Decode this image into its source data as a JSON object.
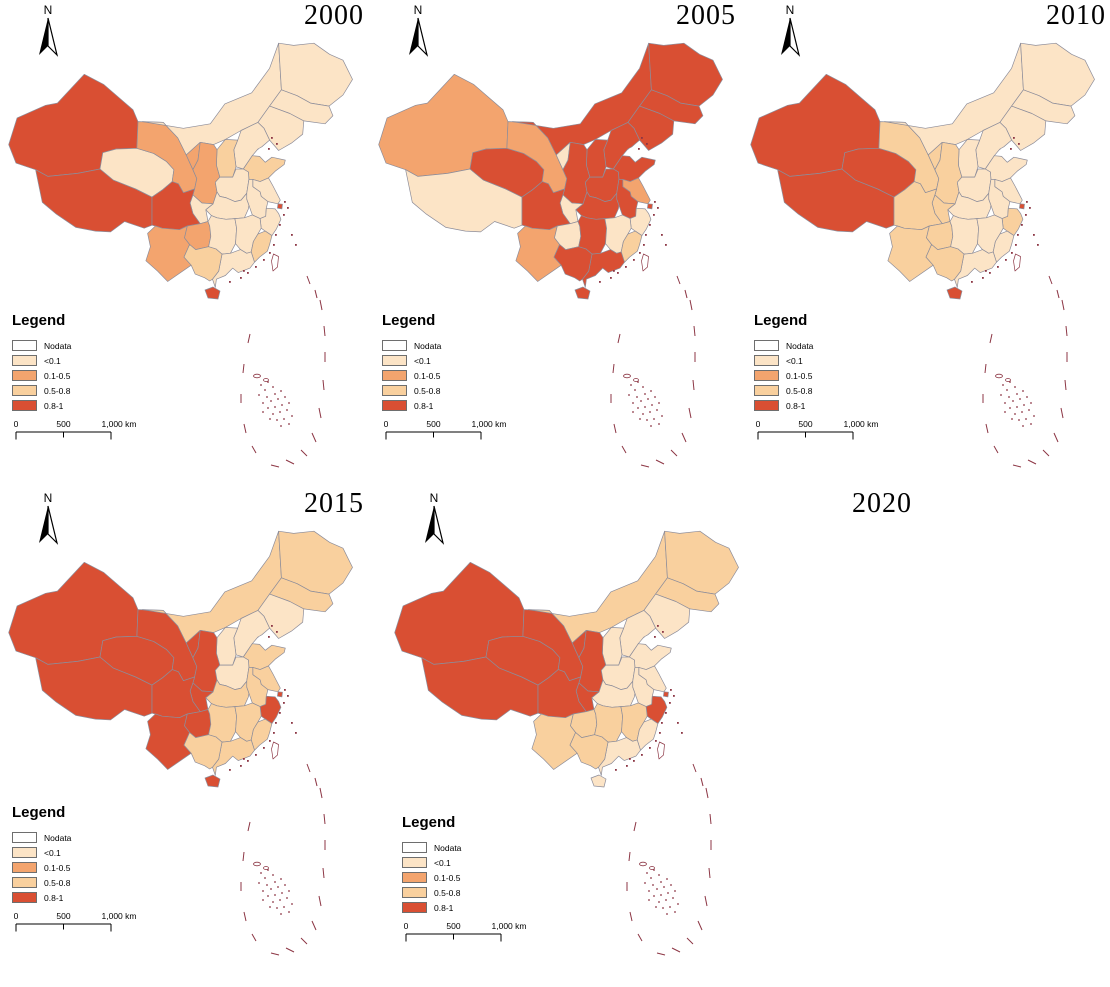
{
  "figure": {
    "description": "Five choropleth maps of China by province for years 2000, 2005, 2010, 2015, 2020",
    "north_label": "N"
  },
  "palette": {
    "nodata": "#ffffff",
    "lt01": "#fce4c6",
    "mid": "#f3a46e",
    "sandy": "#f9d09e",
    "high": "#d94f33",
    "border": "#8d8d9a",
    "island_outline": "#8c3644",
    "text": "#000000"
  },
  "legend": {
    "title": "Legend",
    "items": [
      {
        "key": "nodata",
        "label": "Nodata"
      },
      {
        "key": "lt01",
        "label": "<0.1"
      },
      {
        "key": "mid",
        "label": "0.1-0.5"
      },
      {
        "key": "sandy",
        "label": "0.5-0.8"
      },
      {
        "key": "high",
        "label": "0.8-1"
      }
    ]
  },
  "scalebar": {
    "start": "0",
    "mid": "500",
    "end": "1,000 km"
  },
  "chart_data": {
    "type": "heatmap",
    "title": "China provincial choropleth series",
    "classes": [
      "Nodata",
      "<0.1",
      "0.1-0.5",
      "0.5-0.8",
      "0.8-1"
    ],
    "years": [
      "2000",
      "2005",
      "2010",
      "2015",
      "2020"
    ],
    "categories": [
      "xinjiang",
      "tibet",
      "qinghai",
      "gansu",
      "ningxia",
      "inner_mongolia",
      "heilongjiang",
      "jilin",
      "liaoning",
      "beijing",
      "tianjin",
      "hebei",
      "shanxi",
      "shaanxi",
      "shandong",
      "henan",
      "jiangsu",
      "anhui",
      "shanghai",
      "zhejiang",
      "hubei",
      "chongqing",
      "sichuan",
      "yunnan",
      "guizhou",
      "hunan",
      "jiangxi",
      "fujian",
      "guangdong",
      "guangxi",
      "hainan",
      "taiwan"
    ],
    "series": [
      {
        "name": "2000",
        "values": [
          "0.8-1",
          "0.8-1",
          "<0.1",
          "0.1-0.5",
          "0.1-0.5",
          "<0.1",
          "<0.1",
          "<0.1",
          "<0.1",
          "0.8-1",
          "<0.1",
          "<0.1",
          "0.5-0.8",
          "0.1-0.5",
          "0.5-0.8",
          "<0.1",
          "<0.1",
          "<0.1",
          "0.8-1",
          "<0.1",
          "<0.1",
          "<0.1",
          "0.8-1",
          "0.1-0.5",
          "0.1-0.5",
          "<0.1",
          "<0.1",
          "0.5-0.8",
          "<0.1",
          "0.5-0.8",
          "0.8-1",
          "Nodata"
        ]
      },
      {
        "name": "2005",
        "values": [
          "0.1-0.5",
          "<0.1",
          "0.8-1",
          "0.1-0.5",
          "<0.1",
          "0.8-1",
          "0.8-1",
          "0.8-1",
          "0.8-1",
          "0.8-1",
          "0.8-1",
          "0.8-1",
          "0.8-1",
          "0.8-1",
          "0.8-1",
          "0.8-1",
          "0.1-0.5",
          "0.8-1",
          "0.8-1",
          "<0.1",
          "0.8-1",
          "<0.1",
          "0.8-1",
          "0.1-0.5",
          "<0.1",
          "0.8-1",
          "<0.1",
          "0.5-0.8",
          "0.8-1",
          "0.8-1",
          "0.8-1",
          "Nodata"
        ]
      },
      {
        "name": "2010",
        "values": [
          "0.8-1",
          "0.8-1",
          "0.8-1",
          "0.5-0.8",
          "0.5-0.8",
          "<0.1",
          "<0.1",
          "<0.1",
          "<0.1",
          "0.8-1",
          "<0.1",
          "<0.1",
          "<0.1",
          "0.5-0.8",
          "<0.1",
          "<0.1",
          "<0.1",
          "<0.1",
          "0.8-1",
          "0.5-0.8",
          "<0.1",
          "0.5-0.8",
          "0.5-0.8",
          "0.5-0.8",
          "0.5-0.8",
          "<0.1",
          "<0.1",
          "<0.1",
          "<0.1",
          "0.5-0.8",
          "0.8-1",
          "Nodata"
        ]
      },
      {
        "name": "2015",
        "values": [
          "0.8-1",
          "0.8-1",
          "0.8-1",
          "0.8-1",
          "0.8-1",
          "0.5-0.8",
          "0.5-0.8",
          "0.5-0.8",
          "<0.1",
          "0.8-1",
          "<0.1",
          "<0.1",
          "<0.1",
          "0.8-1",
          "0.5-0.8",
          "<0.1",
          "0.5-0.8",
          "0.5-0.8",
          "0.8-1",
          "0.8-1",
          "0.5-0.8",
          "0.8-1",
          "0.8-1",
          "0.8-1",
          "0.8-1",
          "0.5-0.8",
          "0.5-0.8",
          "0.5-0.8",
          "0.5-0.8",
          "0.5-0.8",
          "0.8-1",
          "Nodata"
        ]
      },
      {
        "name": "2020",
        "values": [
          "0.8-1",
          "0.8-1",
          "0.8-1",
          "0.8-1",
          "0.8-1",
          "0.5-0.8",
          "0.5-0.8",
          "0.5-0.8",
          "<0.1",
          "0.8-1",
          "<0.1",
          "<0.1",
          "<0.1",
          "0.8-1",
          "<0.1",
          "<0.1",
          "<0.1",
          "<0.1",
          "0.8-1",
          "0.8-1",
          "<0.1",
          "0.8-1",
          "0.8-1",
          "0.5-0.8",
          "0.5-0.8",
          "0.5-0.8",
          "0.5-0.8",
          "<0.1",
          "<0.1",
          "0.5-0.8",
          "<0.1",
          "Nodata"
        ]
      }
    ],
    "legend_position": "bottom-left of each map",
    "grid": false
  }
}
